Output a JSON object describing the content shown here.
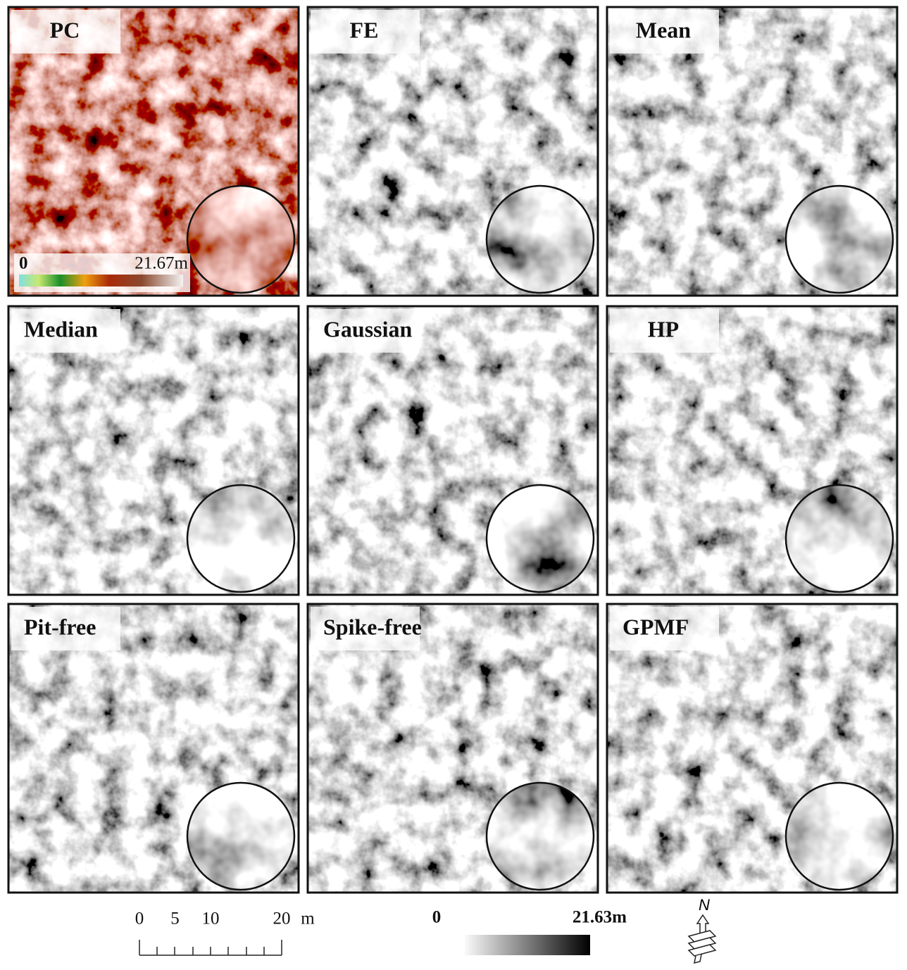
{
  "panels": [
    {
      "label": "PC"
    },
    {
      "label": "FE"
    },
    {
      "label": "Mean"
    },
    {
      "label": "Median"
    },
    {
      "label": "Gaussian"
    },
    {
      "label": "HP"
    },
    {
      "label": "Pit-free"
    },
    {
      "label": "Spike-free"
    },
    {
      "label": "GPMF"
    }
  ],
  "pc_colorbar": {
    "min": "0",
    "max": "21.67m"
  },
  "scale_bar": {
    "labels": [
      0,
      5,
      10,
      20
    ],
    "unit": "m"
  },
  "colorbar": {
    "min": "0",
    "max": "21.63m"
  },
  "north": "N"
}
